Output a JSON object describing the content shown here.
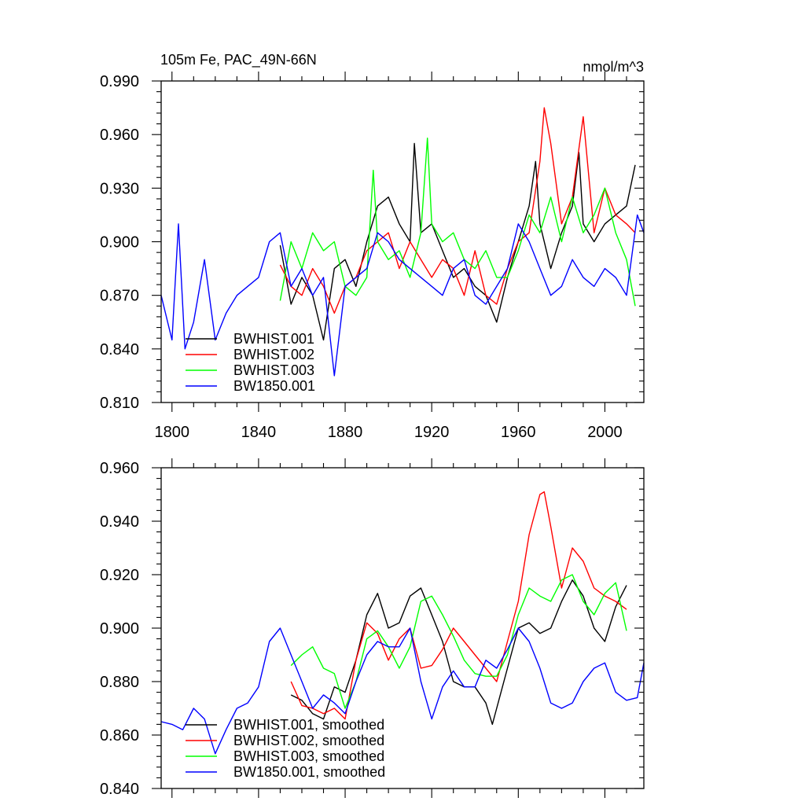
{
  "figure": {
    "title_left": "105m Fe, PAC_49N-66N",
    "title_right": "nmol/m^3"
  },
  "colors": {
    "BWHIST.001": "#000000",
    "BWHIST.002": "#ff0000",
    "BWHIST.003": "#00ff00",
    "BW1850.001": "#0000ff"
  },
  "chart_data": [
    {
      "type": "line",
      "title": "105m Fe, PAC_49N-66N",
      "units_label": "nmol/m^3",
      "xlim": [
        1795,
        2018
      ],
      "ylim": [
        0.81,
        0.99
      ],
      "x_ticks": [
        1800,
        1840,
        1880,
        1920,
        1960,
        2000
      ],
      "x_tick_labels": [
        "1800",
        "1840",
        "1880",
        "1920",
        "1960",
        "2000"
      ],
      "y_ticks": [
        0.81,
        0.84,
        0.87,
        0.9,
        0.93,
        0.96,
        0.99
      ],
      "y_tick_labels": [
        "0.810",
        "0.840",
        "0.870",
        "0.900",
        "0.930",
        "0.960",
        "0.990"
      ],
      "legend_position": "bottom-left",
      "series": [
        {
          "name": "BWHIST.001",
          "x": [
            1850,
            1855,
            1860,
            1865,
            1870,
            1875,
            1880,
            1885,
            1890,
            1895,
            1900,
            1905,
            1910,
            1912,
            1915,
            1920,
            1925,
            1930,
            1935,
            1940,
            1945,
            1950,
            1955,
            1960,
            1965,
            1968,
            1970,
            1975,
            1980,
            1985,
            1988,
            1990,
            1995,
            2000,
            2005,
            2010,
            2014
          ],
          "values": [
            0.898,
            0.865,
            0.88,
            0.87,
            0.845,
            0.885,
            0.89,
            0.875,
            0.9,
            0.92,
            0.925,
            0.91,
            0.9,
            0.955,
            0.905,
            0.91,
            0.895,
            0.88,
            0.885,
            0.875,
            0.87,
            0.855,
            0.88,
            0.9,
            0.92,
            0.945,
            0.91,
            0.885,
            0.905,
            0.92,
            0.95,
            0.91,
            0.9,
            0.91,
            0.915,
            0.92,
            0.943
          ]
        },
        {
          "name": "BWHIST.002",
          "x": [
            1850,
            1855,
            1860,
            1865,
            1870,
            1875,
            1880,
            1885,
            1890,
            1895,
            1900,
            1905,
            1910,
            1915,
            1920,
            1925,
            1930,
            1935,
            1940,
            1945,
            1950,
            1955,
            1960,
            1965,
            1970,
            1972,
            1975,
            1980,
            1985,
            1990,
            1995,
            2000,
            2005,
            2010,
            2014
          ],
          "values": [
            0.887,
            0.875,
            0.87,
            0.885,
            0.875,
            0.86,
            0.875,
            0.88,
            0.895,
            0.9,
            0.905,
            0.885,
            0.9,
            0.89,
            0.88,
            0.89,
            0.885,
            0.87,
            0.895,
            0.87,
            0.865,
            0.885,
            0.9,
            0.905,
            0.945,
            0.975,
            0.955,
            0.91,
            0.925,
            0.97,
            0.905,
            0.93,
            0.915,
            0.91,
            0.905
          ]
        },
        {
          "name": "BWHIST.003",
          "x": [
            1850,
            1855,
            1860,
            1865,
            1870,
            1875,
            1880,
            1885,
            1890,
            1893,
            1895,
            1900,
            1905,
            1910,
            1915,
            1918,
            1920,
            1925,
            1930,
            1935,
            1940,
            1945,
            1950,
            1955,
            1960,
            1965,
            1970,
            1975,
            1980,
            1985,
            1990,
            1995,
            2000,
            2005,
            2010,
            2014
          ],
          "values": [
            0.867,
            0.9,
            0.885,
            0.905,
            0.895,
            0.9,
            0.875,
            0.87,
            0.88,
            0.94,
            0.9,
            0.89,
            0.895,
            0.88,
            0.905,
            0.958,
            0.91,
            0.9,
            0.905,
            0.89,
            0.885,
            0.895,
            0.88,
            0.88,
            0.895,
            0.915,
            0.905,
            0.925,
            0.9,
            0.925,
            0.905,
            0.915,
            0.93,
            0.905,
            0.89,
            0.864
          ]
        },
        {
          "name": "BW1850.001",
          "x": [
            1795,
            1800,
            1803,
            1806,
            1810,
            1815,
            1820,
            1825,
            1830,
            1835,
            1840,
            1845,
            1850,
            1855,
            1860,
            1865,
            1870,
            1875,
            1880,
            1885,
            1890,
            1895,
            1900,
            1905,
            1910,
            1915,
            1920,
            1925,
            1930,
            1935,
            1940,
            1945,
            1950,
            1955,
            1960,
            1965,
            1970,
            1975,
            1980,
            1985,
            1990,
            1995,
            2000,
            2005,
            2010,
            2015,
            2018
          ],
          "values": [
            0.87,
            0.845,
            0.91,
            0.84,
            0.855,
            0.89,
            0.845,
            0.86,
            0.87,
            0.875,
            0.88,
            0.9,
            0.905,
            0.875,
            0.885,
            0.87,
            0.88,
            0.825,
            0.875,
            0.88,
            0.885,
            0.905,
            0.9,
            0.89,
            0.885,
            0.88,
            0.875,
            0.87,
            0.885,
            0.89,
            0.87,
            0.865,
            0.875,
            0.885,
            0.91,
            0.9,
            0.885,
            0.87,
            0.875,
            0.89,
            0.88,
            0.875,
            0.885,
            0.88,
            0.87,
            0.915,
            0.905
          ]
        }
      ]
    },
    {
      "type": "line",
      "xlim": [
        1795,
        2018
      ],
      "ylim": [
        0.84,
        0.96
      ],
      "x_ticks": [
        1800,
        1840,
        1880,
        1920,
        1960,
        2000
      ],
      "y_ticks": [
        0.84,
        0.86,
        0.88,
        0.9,
        0.92,
        0.94,
        0.96
      ],
      "y_tick_labels": [
        "0.840",
        "0.860",
        "0.880",
        "0.900",
        "0.920",
        "0.940",
        "0.960"
      ],
      "legend_position": "bottom-left",
      "series": [
        {
          "name": "BWHIST.001, smoothed",
          "x": [
            1855,
            1860,
            1865,
            1870,
            1875,
            1880,
            1885,
            1890,
            1895,
            1900,
            1905,
            1910,
            1915,
            1920,
            1925,
            1930,
            1935,
            1940,
            1945,
            1948,
            1950,
            1955,
            1960,
            1965,
            1970,
            1975,
            1980,
            1985,
            1990,
            1995,
            2000,
            2005,
            2010
          ],
          "values": [
            0.875,
            0.873,
            0.868,
            0.866,
            0.878,
            0.876,
            0.888,
            0.905,
            0.913,
            0.9,
            0.902,
            0.912,
            0.915,
            0.905,
            0.895,
            0.88,
            0.878,
            0.878,
            0.872,
            0.864,
            0.87,
            0.885,
            0.9,
            0.902,
            0.898,
            0.9,
            0.91,
            0.918,
            0.912,
            0.9,
            0.895,
            0.908,
            0.916
          ]
        },
        {
          "name": "BWHIST.002, smoothed",
          "x": [
            1855,
            1860,
            1865,
            1870,
            1875,
            1880,
            1885,
            1890,
            1895,
            1900,
            1905,
            1910,
            1915,
            1920,
            1925,
            1930,
            1935,
            1940,
            1945,
            1950,
            1955,
            1960,
            1965,
            1970,
            1972,
            1975,
            1980,
            1985,
            1990,
            1995,
            2000,
            2005,
            2010
          ],
          "values": [
            0.88,
            0.871,
            0.87,
            0.868,
            0.87,
            0.866,
            0.888,
            0.902,
            0.898,
            0.888,
            0.896,
            0.9,
            0.885,
            0.886,
            0.892,
            0.9,
            0.895,
            0.89,
            0.885,
            0.88,
            0.895,
            0.91,
            0.935,
            0.95,
            0.951,
            0.938,
            0.915,
            0.93,
            0.925,
            0.915,
            0.912,
            0.91,
            0.907
          ]
        },
        {
          "name": "BWHIST.003, smoothed",
          "x": [
            1855,
            1860,
            1865,
            1870,
            1875,
            1880,
            1885,
            1890,
            1895,
            1900,
            1905,
            1910,
            1915,
            1920,
            1925,
            1930,
            1935,
            1940,
            1945,
            1950,
            1955,
            1960,
            1965,
            1970,
            1975,
            1980,
            1985,
            1990,
            1995,
            2000,
            2005,
            2010
          ],
          "values": [
            0.886,
            0.89,
            0.893,
            0.885,
            0.883,
            0.87,
            0.88,
            0.896,
            0.899,
            0.893,
            0.885,
            0.893,
            0.91,
            0.912,
            0.905,
            0.897,
            0.888,
            0.883,
            0.882,
            0.882,
            0.89,
            0.905,
            0.915,
            0.912,
            0.91,
            0.918,
            0.92,
            0.91,
            0.905,
            0.913,
            0.917,
            0.899
          ]
        },
        {
          "name": "BW1850.001, smoothed",
          "x": [
            1795,
            1800,
            1805,
            1810,
            1815,
            1820,
            1825,
            1830,
            1835,
            1840,
            1845,
            1850,
            1855,
            1860,
            1865,
            1870,
            1875,
            1880,
            1885,
            1890,
            1895,
            1900,
            1905,
            1910,
            1915,
            1920,
            1925,
            1930,
            1935,
            1940,
            1945,
            1950,
            1955,
            1960,
            1965,
            1970,
            1975,
            1980,
            1985,
            1990,
            1995,
            2000,
            2005,
            2010,
            2015,
            2018
          ],
          "values": [
            0.865,
            0.864,
            0.862,
            0.87,
            0.866,
            0.853,
            0.862,
            0.87,
            0.872,
            0.878,
            0.895,
            0.9,
            0.89,
            0.88,
            0.87,
            0.875,
            0.872,
            0.868,
            0.88,
            0.89,
            0.895,
            0.893,
            0.893,
            0.9,
            0.88,
            0.866,
            0.878,
            0.884,
            0.878,
            0.878,
            0.888,
            0.885,
            0.892,
            0.9,
            0.895,
            0.885,
            0.872,
            0.87,
            0.872,
            0.88,
            0.885,
            0.887,
            0.876,
            0.873,
            0.874,
            0.887
          ]
        }
      ]
    }
  ]
}
